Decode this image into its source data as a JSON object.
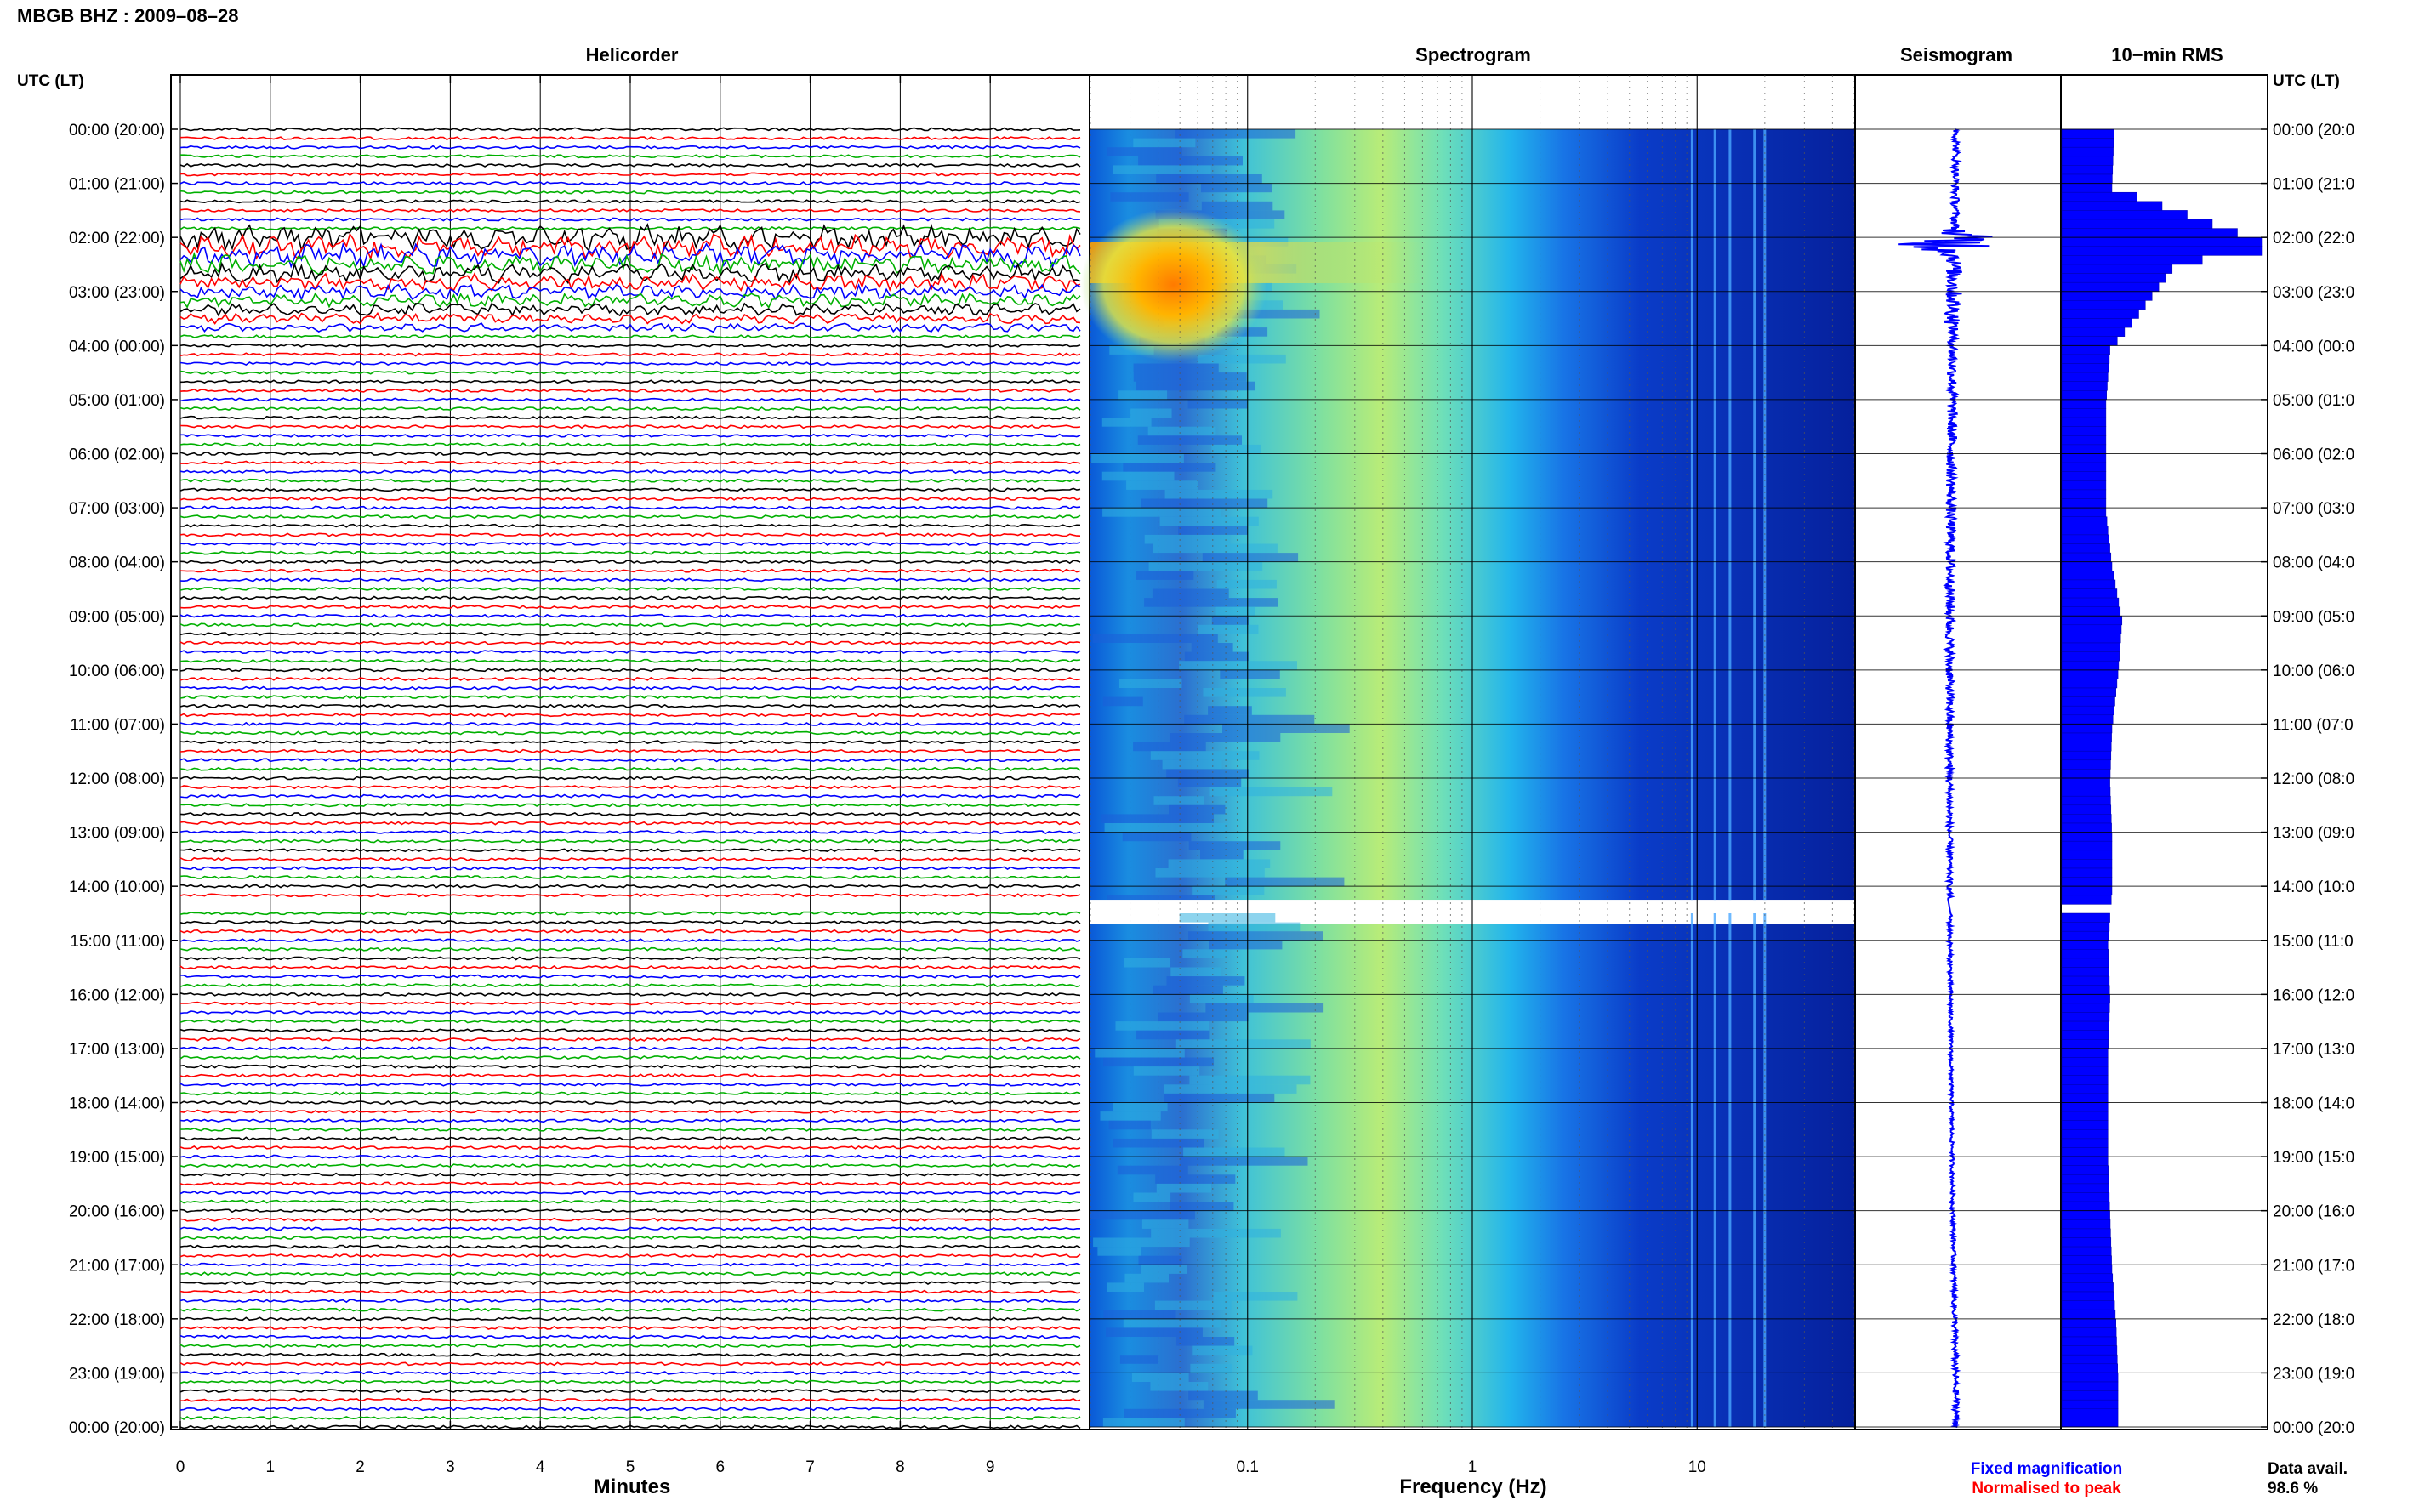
{
  "page": {
    "title": "MBGB BHZ : 2009–08–28"
  },
  "panels": {
    "helicorder": "Helicorder",
    "spectrogram": "Spectrogram",
    "seismogram": "Seismogram",
    "rms": "10−min RMS"
  },
  "axes": {
    "time_header_left": "UTC (LT)",
    "time_header_right": "UTC (LT)",
    "minutes_label": "Minutes",
    "frequency_label": "Frequency (Hz)",
    "minute_ticks": [
      "0",
      "1",
      "2",
      "3",
      "4",
      "5",
      "6",
      "7",
      "8",
      "9"
    ],
    "frequency_ticks": [
      "0.1",
      "1",
      "10"
    ],
    "hour_labels_left": [
      "00:00 (20:00)",
      "01:00 (21:00)",
      "02:00 (22:00)",
      "03:00 (23:00)",
      "04:00 (00:00)",
      "05:00 (01:00)",
      "06:00 (02:00)",
      "07:00 (03:00)",
      "08:00 (04:00)",
      "09:00 (05:00)",
      "10:00 (06:00)",
      "11:00 (07:00)",
      "12:00 (08:00)",
      "13:00 (09:00)",
      "14:00 (10:00)",
      "15:00 (11:00)",
      "16:00 (12:00)",
      "17:00 (13:00)",
      "18:00 (14:00)",
      "19:00 (15:00)",
      "20:00 (16:00)",
      "21:00 (17:00)",
      "22:00 (18:00)",
      "23:00 (19:00)",
      "00:00 (20:00)"
    ],
    "hour_labels_right": [
      "00:00 (20:0",
      "01:00 (21:0",
      "02:00 (22:0",
      "03:00 (23:0",
      "04:00 (00:0",
      "05:00 (01:0",
      "06:00 (02:0",
      "07:00 (03:0",
      "08:00 (04:0",
      "09:00 (05:0",
      "10:00 (06:0",
      "11:00 (07:0",
      "12:00 (08:0",
      "13:00 (09:0",
      "14:00 (10:0",
      "15:00 (11:0",
      "16:00 (12:0",
      "17:00 (13:0",
      "18:00 (14:0",
      "19:00 (15:0",
      "20:00 (16:0",
      "21:00 (17:0",
      "22:00 (18:0",
      "23:00 (19:0",
      "00:00 (20:0"
    ]
  },
  "legend": {
    "fixed": "Fixed magnification",
    "normalised": "Normalised to peak",
    "data_avail_label": "Data avail.",
    "data_avail_value": "98.6 %"
  },
  "colors": {
    "trace_cycle": [
      "#000000",
      "#ff0000",
      "#0000ff",
      "#00b000"
    ],
    "rms_fill": "#0000ff",
    "seismo": "#0000ff",
    "fixed_legend": "#0000ff",
    "normalised_legend": "#ff0000"
  },
  "chart_data": [
    {
      "type": "line",
      "title": "Helicorder",
      "xlabel": "Minutes",
      "x_range_minutes": [
        0,
        10
      ],
      "y": "UTC hour",
      "y_range_hours": [
        0,
        24
      ],
      "lines_per_hour": 6,
      "gap_hours": [
        14.25,
        14.5
      ],
      "event_window_hours": [
        2.0,
        3.75
      ],
      "event_peak_hour": 2.25
    },
    {
      "type": "heatmap",
      "title": "Spectrogram",
      "xlabel": "Frequency (Hz)",
      "xscale": "log",
      "xlim": [
        0.02,
        50
      ],
      "y_range_hours": [
        0,
        24
      ],
      "gap_hours": [
        14.25,
        14.5
      ],
      "high_energy_region": {
        "freq_hz": [
          0.02,
          0.3
        ],
        "hours": [
          2.0,
          4.25
        ]
      },
      "persistent_lines_hz": [
        9.5,
        12,
        14,
        18,
        20
      ]
    },
    {
      "type": "line",
      "title": "Seismogram",
      "y_range_hours": [
        0,
        24
      ],
      "gap_hours": [
        14.25,
        14.5
      ],
      "event_hour": 2.1
    },
    {
      "type": "bar",
      "title": "10−min RMS",
      "orientation": "horizontal",
      "bin_minutes": 10,
      "y_range_hours": [
        0,
        24
      ],
      "gap_hours": [
        14.25,
        14.5
      ],
      "value_units": "relative (normalised to peak = 1)",
      "hourly_profile": [
        {
          "hour": 0,
          "rms": 0.26
        },
        {
          "hour": 1,
          "rms": 0.25
        },
        {
          "hour": 2,
          "rms": 1.0
        },
        {
          "hour": 2.5,
          "rms": 0.55
        },
        {
          "hour": 3,
          "rms": 0.45
        },
        {
          "hour": 3.5,
          "rms": 0.35
        },
        {
          "hour": 4,
          "rms": 0.24
        },
        {
          "hour": 5,
          "rms": 0.22
        },
        {
          "hour": 6,
          "rms": 0.22
        },
        {
          "hour": 7,
          "rms": 0.22
        },
        {
          "hour": 8,
          "rms": 0.25
        },
        {
          "hour": 9,
          "rms": 0.3
        },
        {
          "hour": 10,
          "rms": 0.28
        },
        {
          "hour": 11,
          "rms": 0.25
        },
        {
          "hour": 12,
          "rms": 0.24
        },
        {
          "hour": 13,
          "rms": 0.25
        },
        {
          "hour": 14,
          "rms": 0.25
        },
        {
          "hour": 15,
          "rms": 0.23
        },
        {
          "hour": 16,
          "rms": 0.24
        },
        {
          "hour": 17,
          "rms": 0.23
        },
        {
          "hour": 18,
          "rms": 0.23
        },
        {
          "hour": 19,
          "rms": 0.23
        },
        {
          "hour": 20,
          "rms": 0.24
        },
        {
          "hour": 21,
          "rms": 0.25
        },
        {
          "hour": 22,
          "rms": 0.27
        },
        {
          "hour": 23,
          "rms": 0.28
        }
      ],
      "data_availability_percent": 98.6
    }
  ]
}
